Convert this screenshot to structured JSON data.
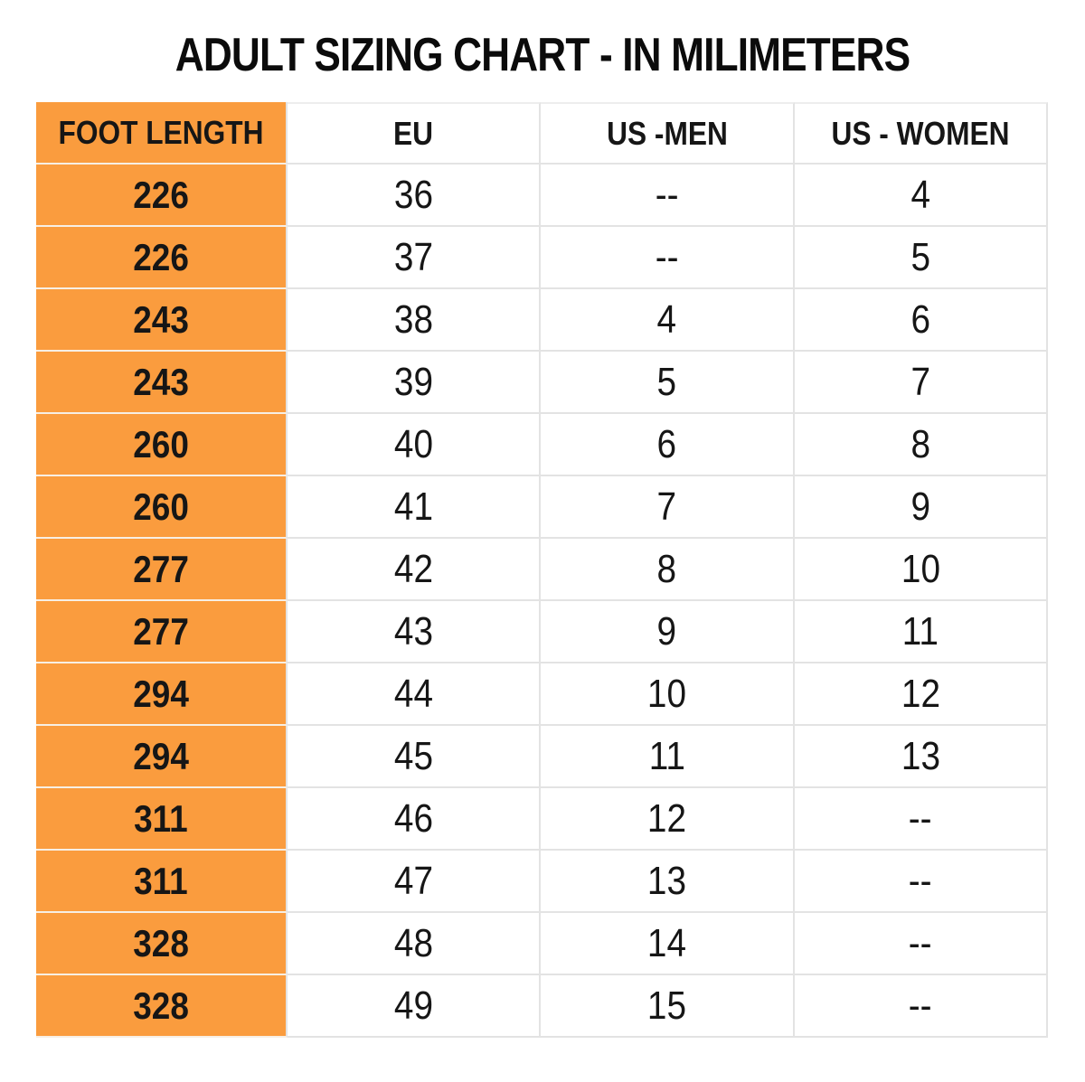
{
  "title": "ADULT SIZING CHART - IN MILIMETERS",
  "colors": {
    "highlight_orange": "#FA9C3E",
    "grid_line": "#E3E3E3",
    "text": "#161616",
    "background": "#FFFFFF"
  },
  "chart_data": {
    "type": "table",
    "title": "ADULT SIZING CHART - IN MILIMETERS",
    "columns": [
      "FOOT LENGTH",
      "EU",
      "US -MEN",
      "US - WOMEN"
    ],
    "rows": [
      [
        "226",
        "36",
        "--",
        "4"
      ],
      [
        "226",
        "37",
        "--",
        "5"
      ],
      [
        "243",
        "38",
        "4",
        "6"
      ],
      [
        "243",
        "39",
        "5",
        "7"
      ],
      [
        "260",
        "40",
        "6",
        "8"
      ],
      [
        "260",
        "41",
        "7",
        "9"
      ],
      [
        "277",
        "42",
        "8",
        "10"
      ],
      [
        "277",
        "43",
        "9",
        "11"
      ],
      [
        "294",
        "44",
        "10",
        "12"
      ],
      [
        "294",
        "45",
        "11",
        "13"
      ],
      [
        "311",
        "46",
        "12",
        "--"
      ],
      [
        "311",
        "47",
        "13",
        "--"
      ],
      [
        "328",
        "48",
        "14",
        "--"
      ],
      [
        "328",
        "49",
        "15",
        "--"
      ]
    ]
  }
}
